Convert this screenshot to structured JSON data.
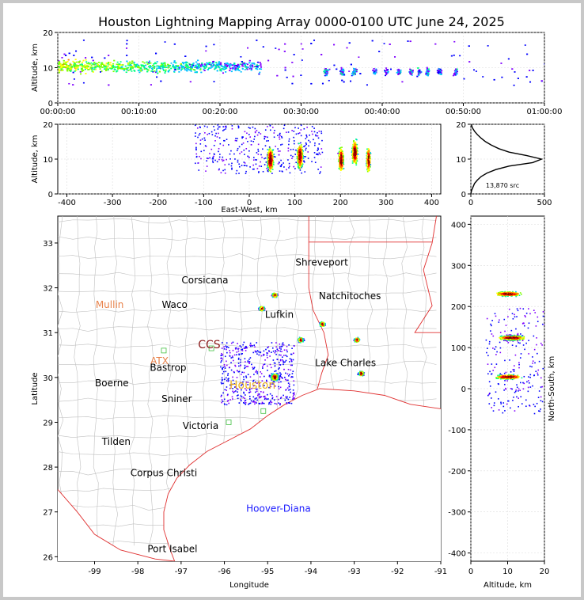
{
  "figure": {
    "title": "Houston Lightning Mapping Array 0000-0100 UTC June 24, 2025",
    "source_count_label": "13,870 src"
  },
  "chart_data": [
    {
      "type": "scatter",
      "panel": "time-altitude",
      "title": "",
      "xlabel": "",
      "ylabel": "Altitude, km",
      "xlim": [
        "00:00:00",
        "01:00:00"
      ],
      "ylim": [
        0,
        20
      ],
      "x_ticks": [
        "00:00:00",
        "00:10:00",
        "00:20:00",
        "00:30:00",
        "00:40:00",
        "00:50:00",
        "01:00:00"
      ],
      "y_ticks": [
        0,
        10,
        20
      ],
      "grid": true,
      "clusters_minutes": [
        {
          "t": [
            0,
            25
          ],
          "alt": [
            7,
            15
          ],
          "density": "high"
        },
        {
          "t": [
            30,
            50
          ],
          "alt": [
            6,
            12
          ],
          "density": "medium"
        },
        {
          "t": [
            50,
            60
          ],
          "alt": [
            8,
            18
          ],
          "density": "sparse"
        }
      ]
    },
    {
      "type": "scatter",
      "panel": "east-west-altitude",
      "title": "",
      "xlabel": "East-West, km",
      "ylabel": "Altitude, km",
      "xlim": [
        -420,
        420
      ],
      "ylim": [
        0,
        20
      ],
      "x_ticks": [
        -400,
        -300,
        -200,
        -100,
        0,
        100,
        200,
        300,
        400
      ],
      "y_ticks": [
        0,
        10,
        20
      ],
      "grid": true,
      "cells": [
        {
          "x": 45,
          "alt": 10
        },
        {
          "x": 110,
          "alt": 11
        },
        {
          "x": 200,
          "alt": 10
        },
        {
          "x": 230,
          "alt": 12
        },
        {
          "x": 260,
          "alt": 10
        }
      ]
    },
    {
      "type": "line",
      "panel": "altitude-histogram",
      "title": "",
      "xlabel": "",
      "ylabel": "",
      "xlim": [
        0,
        500
      ],
      "ylim": [
        0,
        20
      ],
      "x_ticks": [
        0,
        500
      ],
      "y_ticks": [
        0,
        10,
        20
      ],
      "grid": true,
      "altitude_km": [
        0,
        1,
        2,
        3,
        4,
        5,
        6,
        7,
        8,
        9,
        10,
        11,
        12,
        13,
        14,
        15,
        16,
        17,
        18,
        19,
        20
      ],
      "source_count": [
        0,
        5,
        15,
        25,
        45,
        70,
        110,
        170,
        260,
        420,
        480,
        380,
        260,
        190,
        140,
        100,
        70,
        45,
        25,
        10,
        4
      ]
    },
    {
      "type": "scatter",
      "panel": "plan-view",
      "title": "",
      "xlabel": "Longitude",
      "ylabel": "Latitude",
      "xlim": [
        -99.85,
        -91
      ],
      "ylim": [
        25.9,
        33.6
      ],
      "x_ticks": [
        -99,
        -98,
        -97,
        -96,
        -95,
        -94,
        -93,
        -92,
        -91
      ],
      "y_ticks": [
        26,
        27,
        28,
        29,
        30,
        31,
        32,
        33
      ],
      "cities": [
        {
          "name": "Shreveport",
          "lon": -93.75,
          "lat": 32.5,
          "color": "#000000"
        },
        {
          "name": "Corsicana",
          "lon": -96.45,
          "lat": 32.1,
          "color": "#000000"
        },
        {
          "name": "Natchitoches",
          "lon": -93.1,
          "lat": 31.75,
          "color": "#000000"
        },
        {
          "name": "Mullin",
          "lon": -98.65,
          "lat": 31.55,
          "color": "#e8824a"
        },
        {
          "name": "Waco",
          "lon": -97.15,
          "lat": 31.55,
          "color": "#000000"
        },
        {
          "name": "Lufkin",
          "lon": -94.73,
          "lat": 31.33,
          "color": "#000000"
        },
        {
          "name": "CCS",
          "lon": -96.35,
          "lat": 30.65,
          "color": "#8b1a1a"
        },
        {
          "name": "ATX",
          "lon": -97.5,
          "lat": 30.3,
          "color": "#e8824a"
        },
        {
          "name": "Bastrop",
          "lon": -97.3,
          "lat": 30.15,
          "color": "#000000"
        },
        {
          "name": "Lake Charles",
          "lon": -93.2,
          "lat": 30.25,
          "color": "#000000"
        },
        {
          "name": "Houston",
          "lon": -95.35,
          "lat": 29.75,
          "color": "#e8b020"
        },
        {
          "name": "Boerne",
          "lon": -98.6,
          "lat": 29.8,
          "color": "#000000"
        },
        {
          "name": "Sniner",
          "lon": -97.1,
          "lat": 29.45,
          "color": "#000000"
        },
        {
          "name": "Victoria",
          "lon": -96.55,
          "lat": 28.85,
          "color": "#000000"
        },
        {
          "name": "Tilden",
          "lon": -98.5,
          "lat": 28.5,
          "color": "#000000"
        },
        {
          "name": "Corpus Christi",
          "lon": -97.4,
          "lat": 27.8,
          "color": "#000000"
        },
        {
          "name": "Hoover-Diana",
          "lon": -94.75,
          "lat": 27.0,
          "color": "#1a1aff"
        },
        {
          "name": "Port Isabel",
          "lon": -97.2,
          "lat": 26.1,
          "color": "#000000"
        }
      ],
      "cells": [
        {
          "lon": -94.85,
          "lat": 31.85
        },
        {
          "lon": -95.15,
          "lat": 31.55
        },
        {
          "lon": -94.25,
          "lat": 30.85
        },
        {
          "lon": -92.95,
          "lat": 30.85
        },
        {
          "lon": -93.75,
          "lat": 31.2
        },
        {
          "lon": -94.85,
          "lat": 30.02
        },
        {
          "lon": -92.85,
          "lat": 30.1
        }
      ]
    },
    {
      "type": "scatter",
      "panel": "altitude-north-south",
      "title": "",
      "xlabel": "Altitude, km",
      "ylabel": "North-South, km",
      "xlim": [
        0,
        20
      ],
      "ylim": [
        -420,
        420
      ],
      "x_ticks": [
        0,
        10,
        20
      ],
      "y_ticks": [
        -400,
        -300,
        -200,
        -100,
        0,
        100,
        200,
        300,
        400
      ],
      "grid": true,
      "cells": [
        {
          "y": 232,
          "alt": 10
        },
        {
          "y": 125,
          "alt": 11
        },
        {
          "y": 30,
          "alt": 10
        }
      ]
    }
  ],
  "colors": {
    "map_state_border": "#e03030",
    "map_county_border": "#c0c0c0",
    "frame_gray": "#c8c8c8"
  }
}
